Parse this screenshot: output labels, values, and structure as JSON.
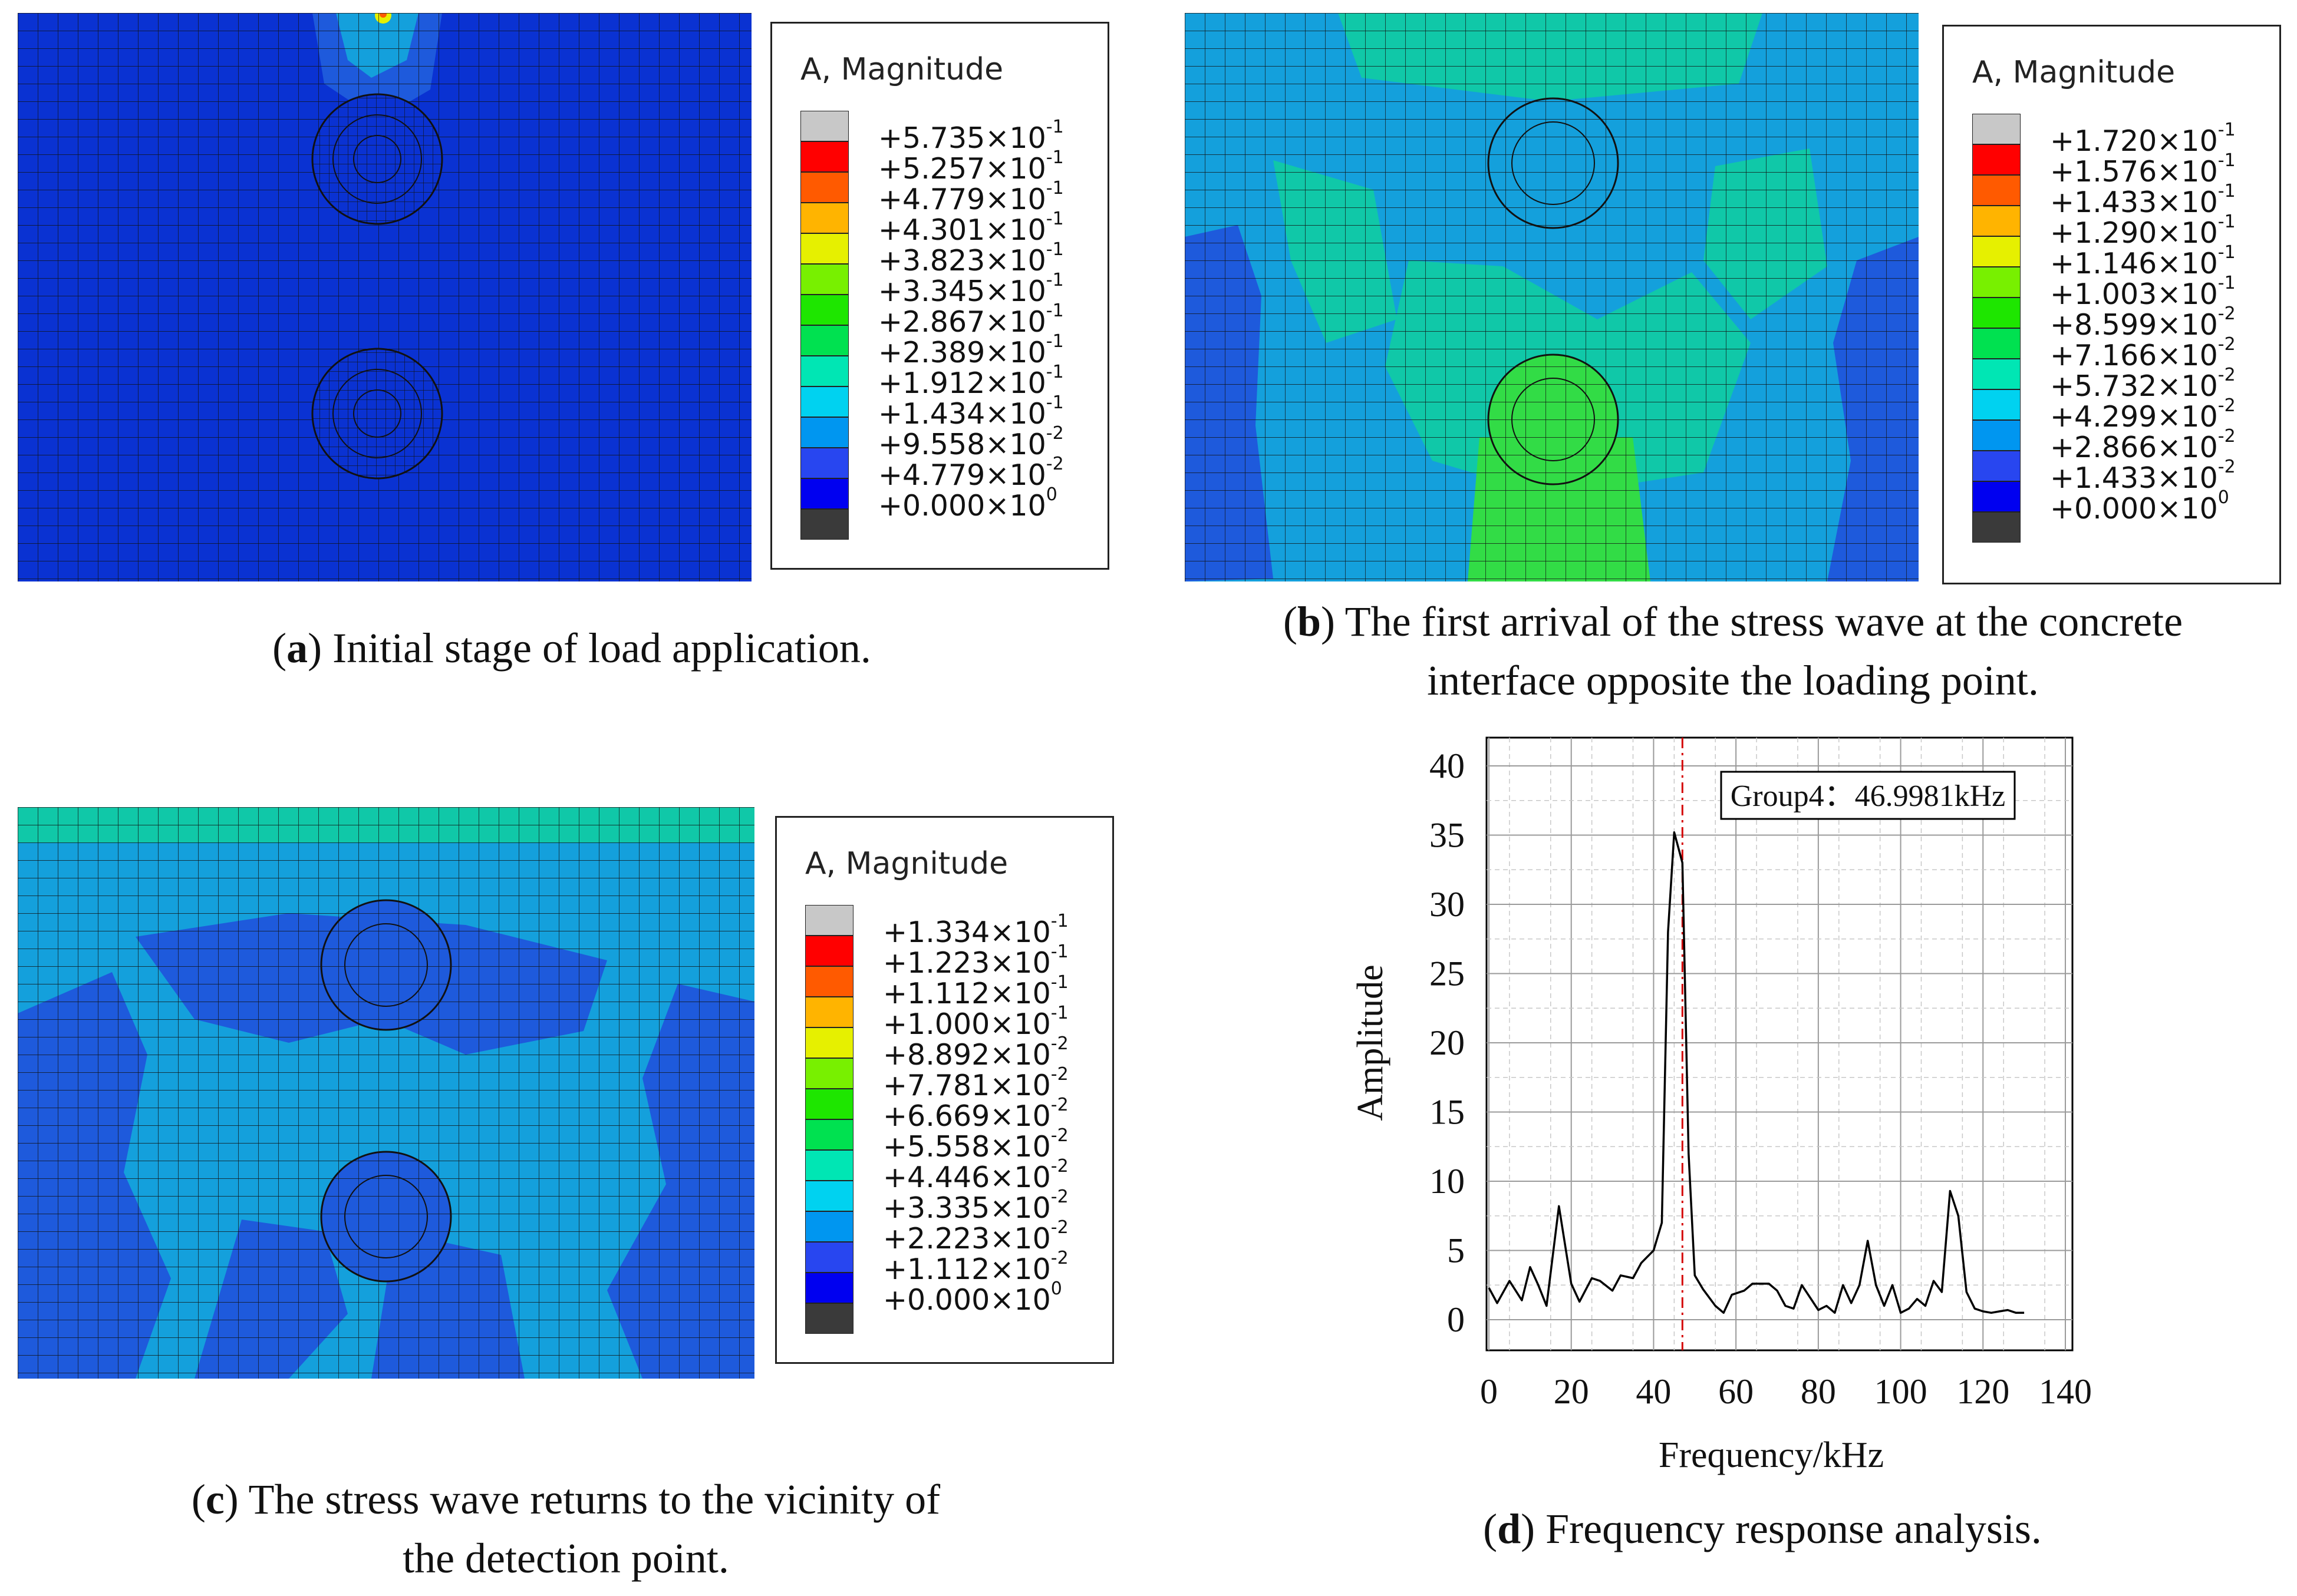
{
  "panels": [
    {
      "id": "a",
      "caption_letter": "a",
      "caption_text": "Initial stage of load application.",
      "legend_title": "A, Magnitude",
      "legend_values": [
        "+5.735×10",
        "+5.257×10",
        "+4.779×10",
        "+4.301×10",
        "+3.823×10",
        "+3.345×10",
        "+2.867×10",
        "+2.389×10",
        "+1.912×10",
        "+1.434×10",
        "+9.558×10",
        "+4.779×10",
        "+0.000×10"
      ],
      "legend_exponents": [
        "-1",
        "-1",
        "-1",
        "-1",
        "-1",
        "-1",
        "-1",
        "-1",
        "-1",
        "-1",
        "-2",
        "-2",
        "0"
      ]
    },
    {
      "id": "b",
      "caption_letter": "b",
      "caption_text": "The first arrival of the stress wave at the concrete interface opposite the loading point.",
      "legend_title": "A, Magnitude",
      "legend_values": [
        "+1.720×10",
        "+1.576×10",
        "+1.433×10",
        "+1.290×10",
        "+1.146×10",
        "+1.003×10",
        "+8.599×10",
        "+7.166×10",
        "+5.732×10",
        "+4.299×10",
        "+2.866×10",
        "+1.433×10",
        "+0.000×10"
      ],
      "legend_exponents": [
        "-1",
        "-1",
        "-1",
        "-1",
        "-1",
        "-1",
        "-2",
        "-2",
        "-2",
        "-2",
        "-2",
        "-2",
        "0"
      ]
    },
    {
      "id": "c",
      "caption_letter": "c",
      "caption_text": "The stress wave returns to the vicinity of the detection point.",
      "legend_title": "A, Magnitude",
      "legend_values": [
        "+1.334×10",
        "+1.223×10",
        "+1.112×10",
        "+1.000×10",
        "+8.892×10",
        "+7.781×10",
        "+6.669×10",
        "+5.558×10",
        "+4.446×10",
        "+3.335×10",
        "+2.223×10",
        "+1.112×10",
        "+0.000×10"
      ],
      "legend_exponents": [
        "-1",
        "-1",
        "-1",
        "-1",
        "-2",
        "-2",
        "-2",
        "-2",
        "-2",
        "-2",
        "-2",
        "-2",
        "0"
      ]
    },
    {
      "id": "d",
      "caption_letter": "d",
      "caption_text": "Frequency response analysis."
    }
  ],
  "legend_colors": [
    "#c8c8c8",
    "#ff0000",
    "#ff5a00",
    "#ffb400",
    "#e6f000",
    "#78f000",
    "#1ee600",
    "#00e150",
    "#00e6b4",
    "#00d2f0",
    "#0096f0",
    "#2846f0",
    "#0000f0",
    "#3a3a3a"
  ],
  "colors": {
    "mesh_line": "#1a1a1a",
    "deep_blue": "#0a32d2",
    "mid_blue": "#1e5adc",
    "cyan_blue": "#14a0dc",
    "teal": "#10c8a8",
    "green": "#32dc46",
    "plot_line": "#000000",
    "peak_marker": "#d40000"
  },
  "chart_data": {
    "type": "line",
    "xlabel": "Frequency/kHz",
    "ylabel": "Amplitude",
    "xlim": [
      0,
      140
    ],
    "ylim": [
      0,
      40
    ],
    "xticks": [
      0,
      20,
      40,
      60,
      80,
      100,
      120,
      140
    ],
    "yticks": [
      0,
      5,
      10,
      15,
      20,
      25,
      30,
      35,
      40
    ],
    "grid": true,
    "annotation": "Group4：46.9981kHz",
    "marker_x": 46.9981,
    "x": [
      0,
      2,
      5,
      8,
      10,
      12,
      14,
      17,
      20,
      22,
      25,
      27,
      30,
      32,
      35,
      37,
      40,
      42,
      43.5,
      45,
      46.9981,
      48.5,
      50,
      52,
      55,
      57,
      59,
      62,
      64,
      66,
      68,
      70,
      72,
      74,
      76,
      78,
      80,
      82,
      84,
      86,
      88,
      90,
      92,
      94,
      96,
      98,
      100,
      102,
      104,
      106,
      108,
      110,
      112,
      114,
      116,
      118,
      120,
      122,
      124,
      126,
      128,
      130
    ],
    "y": [
      2.3,
      1.2,
      2.8,
      1.4,
      3.8,
      2.5,
      1.0,
      8.2,
      2.6,
      1.3,
      3.0,
      2.8,
      2.1,
      3.2,
      3.0,
      4.1,
      5.0,
      7.0,
      28.0,
      35.2,
      33.0,
      12.0,
      3.2,
      2.2,
      1.0,
      0.5,
      1.8,
      2.1,
      2.6,
      2.6,
      2.6,
      2.1,
      1.0,
      0.8,
      2.5,
      1.6,
      0.7,
      1.0,
      0.5,
      2.5,
      1.2,
      2.5,
      5.7,
      2.5,
      1.0,
      2.5,
      0.5,
      0.8,
      1.5,
      1.0,
      2.8,
      2.0,
      9.3,
      7.5,
      2.0,
      0.8,
      0.6,
      0.5,
      0.6,
      0.7,
      0.5,
      0.5
    ]
  }
}
